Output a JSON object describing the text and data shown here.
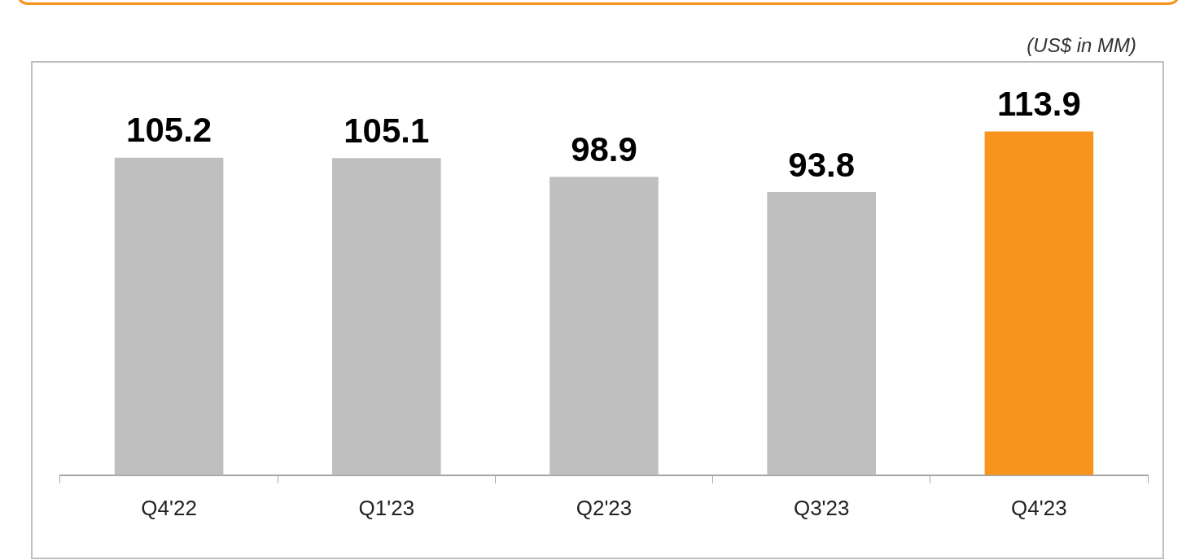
{
  "chart_data": {
    "type": "bar",
    "categories": [
      "Q4'22",
      "Q1'23",
      "Q2'23",
      "Q3'23",
      "Q4'23"
    ],
    "values": [
      105.2,
      105.1,
      98.9,
      93.8,
      113.9
    ],
    "colors": [
      "#bfbfbf",
      "#bfbfbf",
      "#bfbfbf",
      "#bfbfbf",
      "#f7941d"
    ],
    "data_labels": true,
    "grid": false,
    "legend": false,
    "tick_labels": "x",
    "annotations": [
      "(US$ in MM)"
    ]
  }
}
